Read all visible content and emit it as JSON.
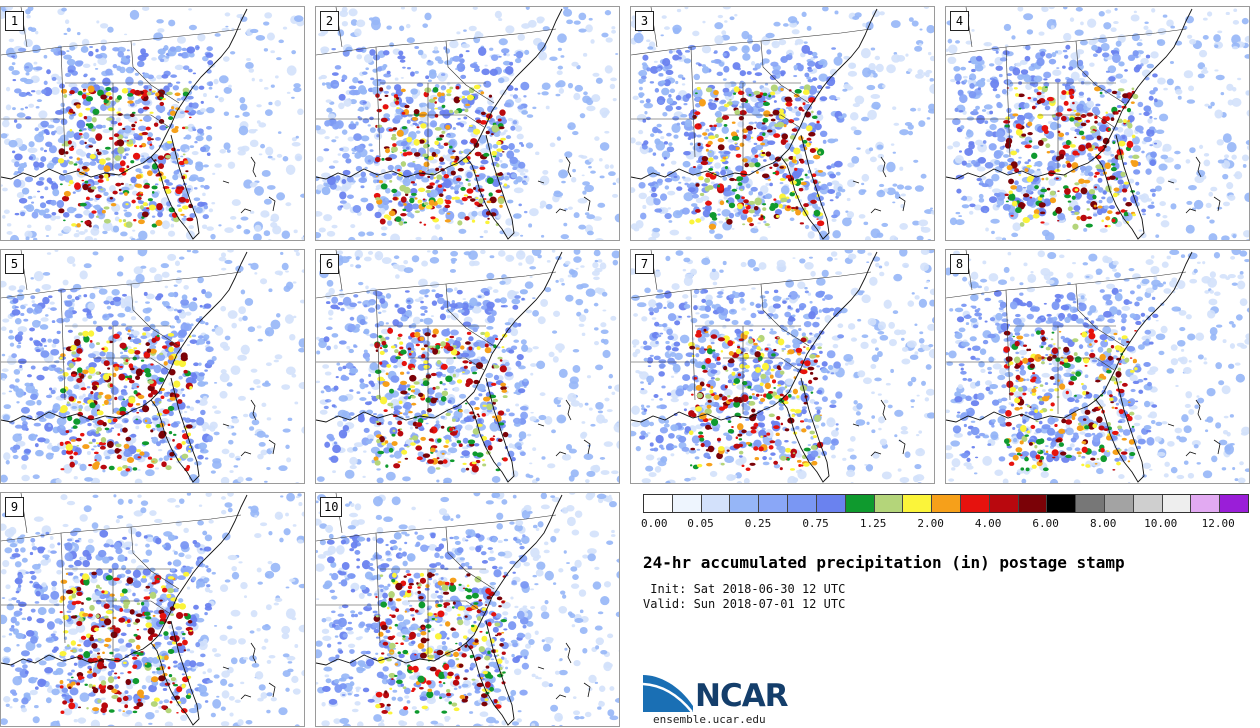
{
  "panels": [
    {
      "label": "1",
      "seed": 11
    },
    {
      "label": "2",
      "seed": 23
    },
    {
      "label": "3",
      "seed": 37
    },
    {
      "label": "4",
      "seed": 41
    },
    {
      "label": "5",
      "seed": 53
    },
    {
      "label": "6",
      "seed": 67
    },
    {
      "label": "7",
      "seed": 71
    },
    {
      "label": "8",
      "seed": 83
    },
    {
      "label": "9",
      "seed": 97
    },
    {
      "label": "10",
      "seed": 101
    }
  ],
  "legend": {
    "colors": [
      "#ffffff",
      "#eef5fe",
      "#d3e1fb",
      "#96b6f7",
      "#8aa7f7",
      "#7a97f3",
      "#6a82ef",
      "#0f9a2e",
      "#b4d57a",
      "#fbf43a",
      "#f6a01a",
      "#e6120e",
      "#b9080e",
      "#7b0207",
      "#000000",
      "#777777",
      "#a3a3a3",
      "#cfcfcf",
      "#eeeeee",
      "#e2aaf2",
      "#9a1ed8"
    ],
    "ticks": [
      "0.00",
      "0.05",
      "0.25",
      "0.75",
      "1.25",
      "2.00",
      "4.00",
      "6.00",
      "8.00",
      "10.00",
      "12.00"
    ]
  },
  "title": "24-hr accumulated precipitation (in) postage stamp",
  "init_line": " Init: Sat 2018-06-30 12 UTC",
  "valid_line": "Valid: Sun 2018-07-01 12 UTC",
  "logo": {
    "word": "NCAR",
    "url": "ensemble.ucar.edu"
  }
}
